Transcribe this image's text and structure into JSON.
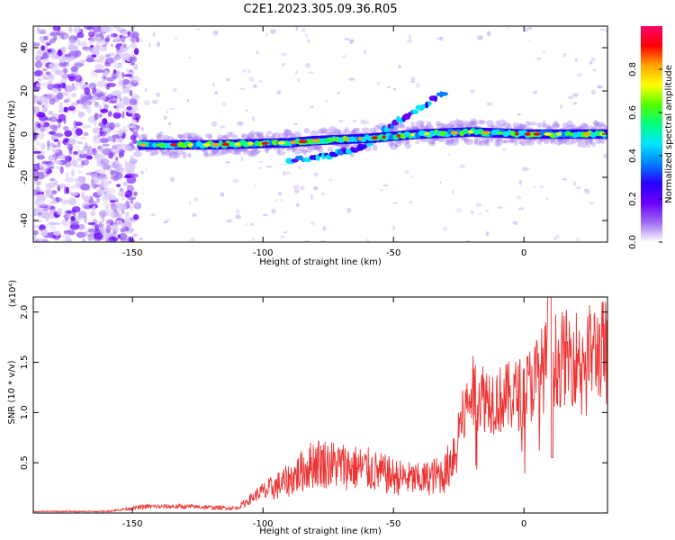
{
  "figure": {
    "title": "C2E1.2023.305.09.36.R05"
  },
  "chart_data": [
    {
      "type": "heatmap",
      "xlabel": "Height of straight line (km)",
      "ylabel": "Frequency (Hz)",
      "xlim": [
        -188,
        32
      ],
      "ylim": [
        -50,
        50
      ],
      "x_ticks": [
        -150,
        -100,
        -50,
        0
      ],
      "y_ticks": [
        -40,
        -20,
        0,
        20,
        40
      ],
      "colorbar": {
        "label": "Normalized spectral amplitude",
        "range": [
          0,
          1
        ],
        "ticks": [
          "0.0",
          "0.2",
          "0.4",
          "0.6",
          "0.8"
        ],
        "colormap": [
          "#ffffff",
          "#9c6cf2",
          "#6a00ff",
          "#2a00ff",
          "#0080ff",
          "#00e5ff",
          "#00ff80",
          "#55ff00",
          "#ffff00",
          "#ffa500",
          "#ff0000",
          "#ff006e"
        ]
      },
      "ridge": [
        {
          "x": -150,
          "y": -5
        },
        {
          "x": -120,
          "y": -5
        },
        {
          "x": -90,
          "y": -4
        },
        {
          "x": -80,
          "y": -3
        },
        {
          "x": -60,
          "y": -2
        },
        {
          "x": -40,
          "y": 0
        },
        {
          "x": -20,
          "y": 1
        },
        {
          "x": 0,
          "y": 0
        },
        {
          "x": 32,
          "y": 0
        }
      ],
      "secondary_ridge": [
        {
          "x": -90,
          "y": -12
        },
        {
          "x": -75,
          "y": -10
        },
        {
          "x": -60,
          "y": -5
        },
        {
          "x": -50,
          "y": 5
        },
        {
          "x": -40,
          "y": 12
        },
        {
          "x": -30,
          "y": 20
        }
      ],
      "noise_region_x": [
        -188,
        -148
      ]
    },
    {
      "type": "line",
      "xlabel": "Height of straight line (km)",
      "ylabel": "SNR (10 * v/v)",
      "y_multiplier": "(x10⁴)",
      "xlim": [
        -188,
        32
      ],
      "ylim": [
        0,
        2.15
      ],
      "x_ticks": [
        -150,
        -100,
        -50,
        0
      ],
      "y_ticks": [
        "0.5",
        "1.0",
        "1.5",
        "2.0"
      ],
      "y_tick_values": [
        0.5,
        1.0,
        1.5,
        2.0
      ],
      "color": "#ee3333",
      "envelope": [
        {
          "x": -188,
          "y": 0.02
        },
        {
          "x": -160,
          "y": 0.02
        },
        {
          "x": -145,
          "y": 0.08
        },
        {
          "x": -130,
          "y": 0.08
        },
        {
          "x": -110,
          "y": 0.06
        },
        {
          "x": -100,
          "y": 0.28
        },
        {
          "x": -90,
          "y": 0.45
        },
        {
          "x": -80,
          "y": 0.7
        },
        {
          "x": -60,
          "y": 0.6
        },
        {
          "x": -50,
          "y": 0.5
        },
        {
          "x": -40,
          "y": 0.45
        },
        {
          "x": -30,
          "y": 0.55
        },
        {
          "x": -20,
          "y": 1.5
        },
        {
          "x": -10,
          "y": 1.4
        },
        {
          "x": 0,
          "y": 1.5
        },
        {
          "x": 10,
          "y": 1.9
        },
        {
          "x": 20,
          "y": 1.95
        },
        {
          "x": 32,
          "y": 2.05
        }
      ]
    }
  ]
}
